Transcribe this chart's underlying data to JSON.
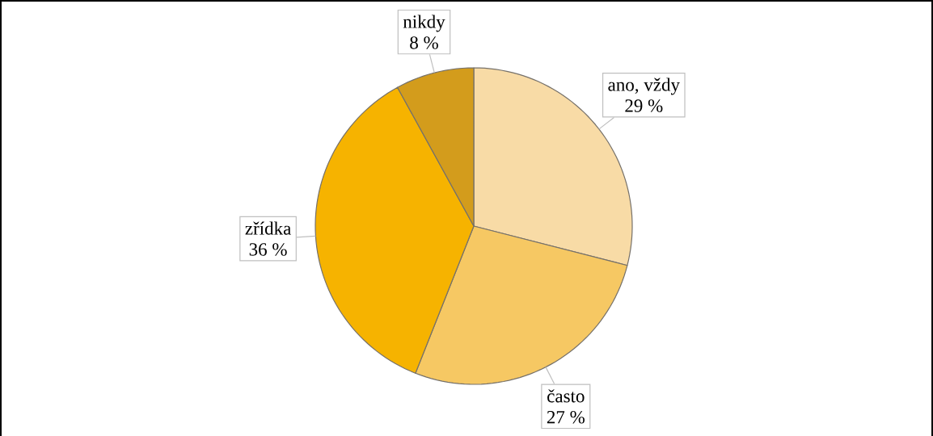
{
  "chart_data": {
    "type": "pie",
    "categories": [
      "ano, vždy",
      "často",
      "zřídka",
      "nikdy"
    ],
    "values": [
      29,
      27,
      36,
      8
    ],
    "value_labels": [
      "29 %",
      "27 %",
      "36 %",
      "8 %"
    ],
    "colors": [
      "#f8dba6",
      "#f6c863",
      "#f6b300",
      "#d39c1c"
    ]
  }
}
